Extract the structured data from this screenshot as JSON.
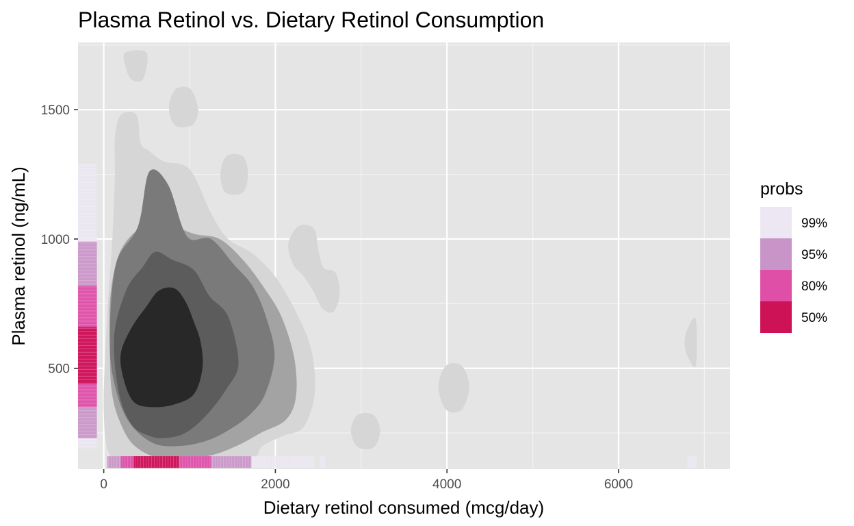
{
  "chart_data": {
    "type": "contour-density",
    "title": "Plasma Retinol vs. Dietary Retinol Consumption",
    "xlabel": "Dietary retinol consumed (mcg/day)",
    "ylabel": "Plasma retinol (ng/mL)",
    "xlim": [
      -300,
      7300
    ],
    "ylim": [
      110,
      1760
    ],
    "x_ticks": [
      0,
      2000,
      4000,
      6000
    ],
    "x_minor_ticks": [
      1000,
      3000,
      5000,
      7000
    ],
    "y_ticks": [
      500,
      1000,
      1500
    ],
    "y_minor_ticks": [
      250,
      750,
      1250,
      1750
    ],
    "grid": true,
    "legend": {
      "title": "probs",
      "position": "right",
      "entries": [
        {
          "label": "99%",
          "color": "#ece7f2"
        },
        {
          "label": "95%",
          "color": "#c994c7"
        },
        {
          "label": "80%",
          "color": "#df4fa8"
        },
        {
          "label": "50%",
          "color": "#ce1256"
        }
      ]
    },
    "contour_levels": [
      {
        "name": "outer",
        "fill": "#d6d6d6",
        "regions": [
          [
            [
              130,
              1390
            ],
            [
              200,
              1480
            ],
            [
              380,
              1480
            ],
            [
              430,
              1370
            ],
            [
              530,
              1340
            ],
            [
              700,
              1300
            ],
            [
              1000,
              1270
            ],
            [
              1250,
              1100
            ],
            [
              1450,
              1000
            ],
            [
              1750,
              940
            ],
            [
              2050,
              830
            ],
            [
              2350,
              640
            ],
            [
              2450,
              510
            ],
            [
              2450,
              380
            ],
            [
              2320,
              270
            ],
            [
              2100,
              240
            ],
            [
              1850,
              200
            ],
            [
              1700,
              150
            ],
            [
              980,
              150
            ],
            [
              400,
              150
            ],
            [
              80,
              160
            ],
            [
              0,
              340
            ],
            [
              40,
              700
            ],
            [
              100,
              1000
            ],
            [
              130,
              1250
            ]
          ],
          [
            [
              250,
              1720
            ],
            [
              500,
              1720
            ],
            [
              460,
              1620
            ],
            [
              330,
              1615
            ],
            [
              260,
              1660
            ]
          ],
          [
            [
              760,
              1510
            ],
            [
              840,
              1580
            ],
            [
              1010,
              1580
            ],
            [
              1100,
              1500
            ],
            [
              1030,
              1440
            ],
            [
              830,
              1440
            ]
          ],
          [
            [
              1360,
              1250
            ],
            [
              1430,
              1320
            ],
            [
              1620,
              1320
            ],
            [
              1680,
              1250
            ],
            [
              1620,
              1180
            ],
            [
              1420,
              1180
            ]
          ],
          [
            [
              2150,
              980
            ],
            [
              2270,
              1050
            ],
            [
              2450,
              1040
            ],
            [
              2500,
              960
            ],
            [
              2560,
              890
            ],
            [
              2700,
              870
            ],
            [
              2750,
              790
            ],
            [
              2680,
              720
            ],
            [
              2550,
              730
            ],
            [
              2440,
              800
            ],
            [
              2320,
              860
            ],
            [
              2210,
              900
            ]
          ],
          [
            [
              2880,
              260
            ],
            [
              2960,
              320
            ],
            [
              3140,
              320
            ],
            [
              3220,
              260
            ],
            [
              3150,
              195
            ],
            [
              2960,
              195
            ]
          ],
          [
            [
              3900,
              430
            ],
            [
              3990,
              510
            ],
            [
              4170,
              510
            ],
            [
              4260,
              430
            ],
            [
              4170,
              340
            ],
            [
              3990,
              340
            ]
          ],
          [
            [
              6770,
              600
            ],
            [
              6800,
              650
            ],
            [
              6900,
              690
            ],
            [
              6900,
              510
            ],
            [
              6800,
              550
            ]
          ]
        ]
      },
      {
        "name": "mid",
        "fill": "#a3a3a3",
        "regions": [
          [
            [
              80,
              790
            ],
            [
              70,
              600
            ],
            [
              90,
              420
            ],
            [
              180,
              300
            ],
            [
              360,
              200
            ],
            [
              700,
              150
            ],
            [
              1200,
              160
            ],
            [
              1550,
              200
            ],
            [
              1830,
              250
            ],
            [
              2120,
              300
            ],
            [
              2240,
              390
            ],
            [
              2220,
              540
            ],
            [
              2070,
              700
            ],
            [
              1850,
              820
            ],
            [
              1620,
              920
            ],
            [
              1350,
              1000
            ],
            [
              1050,
              1020
            ],
            [
              720,
              1060
            ],
            [
              420,
              1040
            ],
            [
              190,
              950
            ]
          ]
        ]
      },
      {
        "name": "inner",
        "fill": "#7a7a7a",
        "regions": [
          [
            [
              70,
              600
            ],
            [
              140,
              420
            ],
            [
              300,
              290
            ],
            [
              580,
              210
            ],
            [
              900,
              200
            ],
            [
              1200,
              220
            ],
            [
              1450,
              260
            ],
            [
              1700,
              320
            ],
            [
              1880,
              400
            ],
            [
              1990,
              550
            ],
            [
              1890,
              700
            ],
            [
              1730,
              820
            ],
            [
              1520,
              900
            ],
            [
              1250,
              1000
            ],
            [
              970,
              1010
            ],
            [
              750,
              1210
            ],
            [
              530,
              1260
            ],
            [
              400,
              1050
            ],
            [
              140,
              900
            ]
          ]
        ]
      },
      {
        "name": "core-ring",
        "fill": "#5c5c5c",
        "regions": [
          [
            [
              120,
              620
            ],
            [
              180,
              400
            ],
            [
              330,
              280
            ],
            [
              520,
              240
            ],
            [
              700,
              230
            ],
            [
              950,
              250
            ],
            [
              1200,
              320
            ],
            [
              1430,
              420
            ],
            [
              1570,
              520
            ],
            [
              1450,
              700
            ],
            [
              1230,
              780
            ],
            [
              1050,
              880
            ],
            [
              800,
              920
            ],
            [
              600,
              950
            ],
            [
              450,
              890
            ],
            [
              260,
              800
            ]
          ]
        ]
      },
      {
        "name": "core",
        "fill": "#282828",
        "regions": [
          [
            [
              200,
              560
            ],
            [
              230,
              460
            ],
            [
              350,
              370
            ],
            [
              560,
              350
            ],
            [
              820,
              360
            ],
            [
              1050,
              400
            ],
            [
              1150,
              500
            ],
            [
              1130,
              600
            ],
            [
              1050,
              680
            ],
            [
              950,
              760
            ],
            [
              820,
              810
            ],
            [
              640,
              800
            ],
            [
              500,
              740
            ],
            [
              330,
              660
            ]
          ]
        ]
      }
    ],
    "y_marginal": {
      "x_range": [
        -300,
        -80
      ],
      "bands": [
        {
          "from": 190,
          "to": 1290,
          "prob": "99%"
        },
        {
          "from": 230,
          "to": 990,
          "prob": "95%"
        },
        {
          "from": 350,
          "to": 820,
          "prob": "80%"
        },
        {
          "from": 440,
          "to": 660,
          "prob": "50%"
        }
      ]
    },
    "x_marginal": {
      "y_range": [
        115,
        160
      ],
      "bands": [
        {
          "from": 40,
          "to": 2450,
          "prob": "99%"
        },
        {
          "from": 2520,
          "to": 2580,
          "prob": "99%"
        },
        {
          "from": 6800,
          "to": 6910,
          "prob": "99%"
        },
        {
          "from": 40,
          "to": 1720,
          "prob": "95%"
        },
        {
          "from": 200,
          "to": 1250,
          "prob": "80%"
        },
        {
          "from": 350,
          "to": 880,
          "prob": "50%"
        }
      ]
    }
  }
}
